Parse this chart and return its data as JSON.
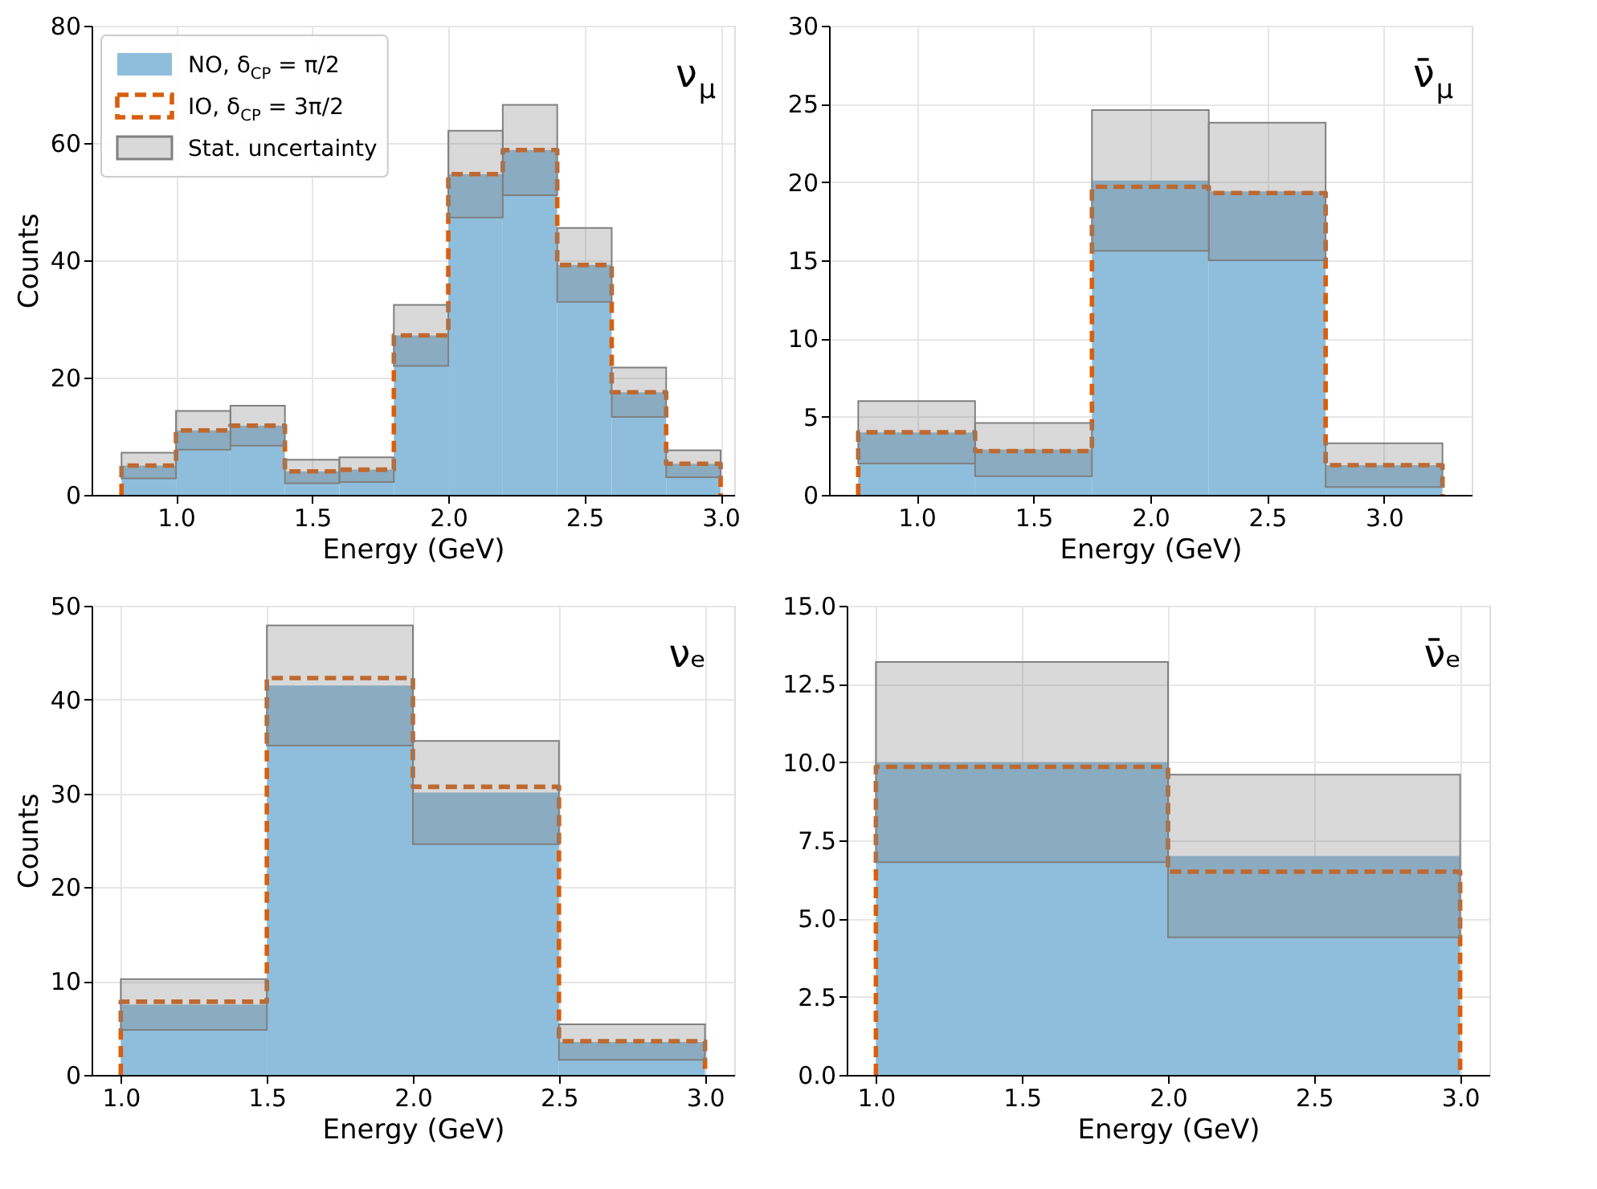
{
  "chart_data": [
    {
      "type": "histogram",
      "annotations": [
        "ν$_{μ}$"
      ],
      "xlabel": "Energy (GeV)",
      "ylabel": "Counts",
      "legend": "top left",
      "grid": true,
      "bins": [
        0.8,
        1.0,
        1.2,
        1.4,
        1.6,
        1.8,
        2.0,
        2.2,
        2.4,
        2.6,
        2.8,
        3.0
      ],
      "xlim": [
        0.69,
        3.05
      ],
      "xticks": [
        {
          "value": 1.0,
          "label": "1.0"
        },
        {
          "value": 1.5,
          "label": "1.5"
        },
        {
          "value": 2.0,
          "label": "2.0"
        },
        {
          "value": 2.5,
          "label": "2.5"
        },
        {
          "value": 3.0,
          "label": "3.0"
        }
      ],
      "ylim": [
        0,
        80
      ],
      "yticks": [
        0,
        20,
        40,
        60,
        80
      ],
      "series": [
        {
          "name": "NO, δ$_{CP}$ = π/2",
          "type": "histogram",
          "color": "#8ebedc",
          "values": [
            5.0,
            11.0,
            11.8,
            4.0,
            4.3,
            27.2,
            54.7,
            58.8,
            39.2,
            17.5,
            5.3
          ]
        },
        {
          "name": "IO, δ$_{CP}$ = 3π/2",
          "type": "histogram",
          "line_style": "dashed",
          "color": "#d95f0e",
          "values": [
            5.0,
            11.0,
            11.8,
            4.0,
            4.3,
            27.2,
            54.7,
            58.8,
            39.2,
            17.5,
            5.3
          ]
        },
        {
          "name": "Stat. uncertainty",
          "type": "histogram",
          "color": "#808080",
          "base": [
            2.8,
            7.7,
            8.4,
            2.0,
            2.2,
            22.0,
            47.3,
            51.1,
            32.9,
            13.3,
            3.0
          ],
          "values": [
            4.4,
            6.6,
            6.8,
            4.0,
            4.2,
            10.4,
            14.8,
            15.4,
            12.6,
            8.4,
            4.6
          ]
        }
      ]
    },
    {
      "type": "histogram",
      "annotations": [
        "ν̄$_{μ}$"
      ],
      "xlabel": "Energy (GeV)",
      "grid": true,
      "bins": [
        0.75,
        1.25,
        1.75,
        2.25,
        2.75,
        3.25
      ],
      "xlim": [
        0.625,
        3.375
      ],
      "xticks": [
        {
          "value": 1.0,
          "label": "1.0"
        },
        {
          "value": 1.5,
          "label": "1.5"
        },
        {
          "value": 2.0,
          "label": "2.0"
        },
        {
          "value": 2.5,
          "label": "2.5"
        },
        {
          "value": 3.0,
          "label": "3.0"
        }
      ],
      "ylim": [
        0,
        30
      ],
      "yticks": [
        0,
        5,
        10,
        15,
        20,
        25,
        30
      ],
      "series": [
        {
          "type": "histogram",
          "color": "#8ebedc",
          "values": [
            4.0,
            2.9,
            20.1,
            19.4,
            1.9
          ]
        },
        {
          "type": "histogram",
          "line_style": "dashed",
          "color": "#d95f0e",
          "values": [
            4.0,
            2.8,
            19.7,
            19.3,
            1.9
          ]
        },
        {
          "type": "histogram",
          "color": "#808080",
          "base": [
            2.0,
            1.2,
            15.6,
            15.0,
            0.5
          ],
          "values": [
            4.0,
            3.4,
            9.0,
            8.8,
            2.8
          ]
        }
      ]
    },
    {
      "type": "histogram",
      "annotations": [
        "νₑ"
      ],
      "xlabel": "Energy (GeV)",
      "ylabel": "Counts",
      "grid": true,
      "bins": [
        1.0,
        1.5,
        2.0,
        2.5,
        3.0
      ],
      "xlim": [
        0.9,
        3.1
      ],
      "xticks": [
        {
          "value": 1.0,
          "label": "1.0"
        },
        {
          "value": 1.5,
          "label": "1.5"
        },
        {
          "value": 2.0,
          "label": "2.0"
        },
        {
          "value": 2.5,
          "label": "2.5"
        },
        {
          "value": 3.0,
          "label": "3.0"
        }
      ],
      "ylim": [
        0,
        50
      ],
      "yticks": [
        0,
        10,
        20,
        30,
        40,
        50
      ],
      "series": [
        {
          "type": "histogram",
          "color": "#8ebedc",
          "values": [
            7.5,
            41.5,
            30.1,
            3.5
          ]
        },
        {
          "type": "histogram",
          "line_style": "dashed",
          "color": "#d95f0e",
          "values": [
            7.8,
            42.3,
            30.7,
            3.6
          ]
        },
        {
          "type": "histogram",
          "color": "#808080",
          "base": [
            4.8,
            35.1,
            24.6,
            1.6
          ],
          "values": [
            5.4,
            12.8,
            11.0,
            3.8
          ]
        }
      ]
    },
    {
      "type": "histogram",
      "annotations": [
        "ν̄ₑ"
      ],
      "xlabel": "Energy (GeV)",
      "grid": true,
      "bins": [
        1.0,
        2.0,
        3.0
      ],
      "xlim": [
        0.9,
        3.1
      ],
      "xticks": [
        {
          "value": 1.0,
          "label": "1.0"
        },
        {
          "value": 1.5,
          "label": "1.5"
        },
        {
          "value": 2.0,
          "label": "2.0"
        },
        {
          "value": 2.5,
          "label": "2.5"
        },
        {
          "value": 3.0,
          "label": "3.0"
        }
      ],
      "ylim": [
        0,
        15
      ],
      "yticks": [
        {
          "value": 0,
          "label": "0.0"
        },
        {
          "value": 2.5,
          "label": "2.5"
        },
        {
          "value": 5,
          "label": "5.0"
        },
        {
          "value": 7.5,
          "label": "7.5"
        },
        {
          "value": 10,
          "label": "10.0"
        },
        {
          "value": 12.5,
          "label": "12.5"
        },
        {
          "value": 15,
          "label": "15.0"
        }
      ],
      "series": [
        {
          "type": "histogram",
          "color": "#8ebedc",
          "values": [
            10.0,
            7.0
          ]
        },
        {
          "type": "histogram",
          "line_style": "dashed",
          "color": "#d95f0e",
          "values": [
            9.85,
            6.5
          ]
        },
        {
          "type": "histogram",
          "color": "#808080",
          "base": [
            6.8,
            4.4
          ],
          "values": [
            6.4,
            5.2
          ]
        }
      ]
    }
  ]
}
